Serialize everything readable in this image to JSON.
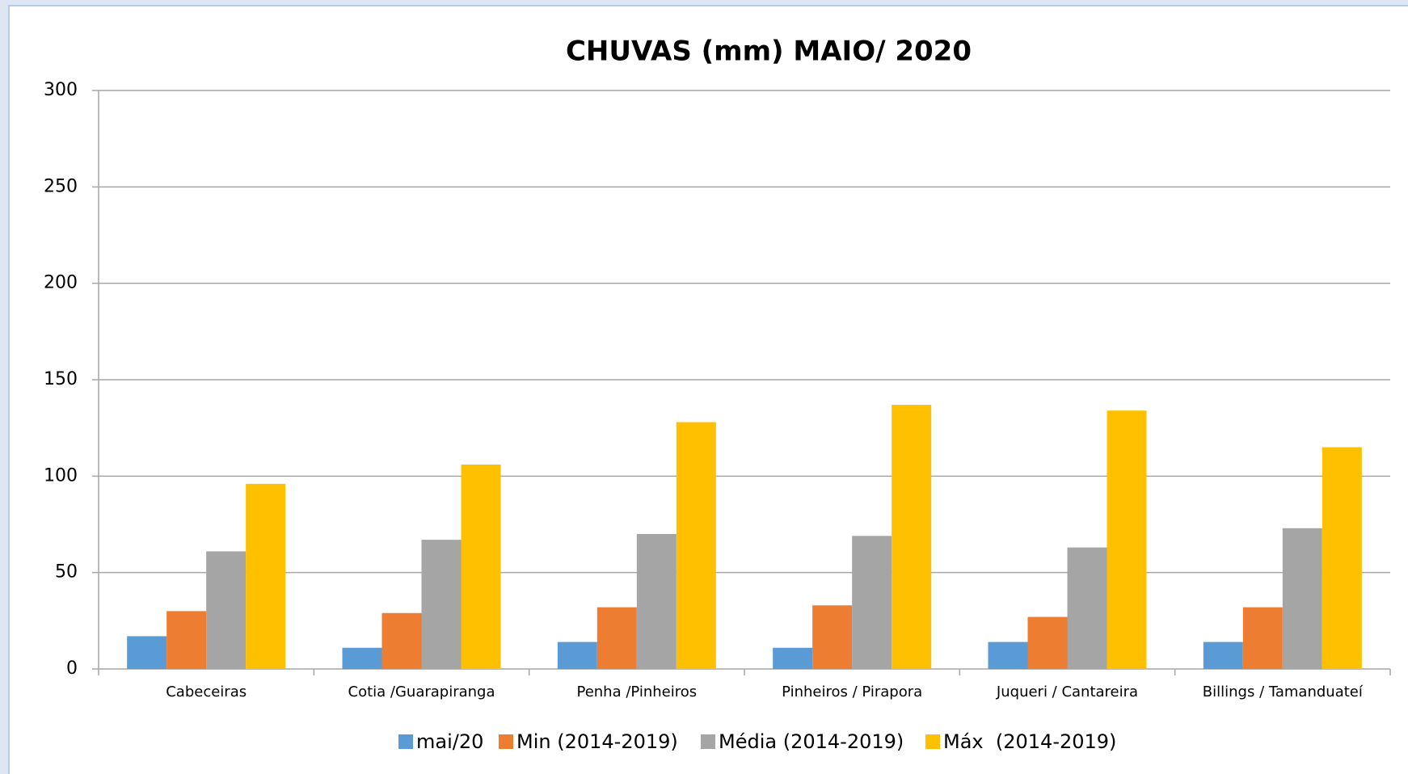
{
  "chart_data": {
    "type": "bar",
    "title": "CHUVAS (mm) MAIO/ 2020",
    "categories": [
      "Cabeceiras",
      "Cotia /Guarapiranga",
      "Penha /Pinheiros",
      "Pinheiros / Pirapora",
      "Juqueri / Cantareira",
      "Billings / Tamanduateí"
    ],
    "series": [
      {
        "name": "mai/20",
        "color": "#5b9bd5",
        "values": [
          17,
          11,
          14,
          11,
          14,
          14
        ]
      },
      {
        "name": "Min (2014-2019)",
        "color": "#ed7d31",
        "values": [
          30,
          29,
          32,
          33,
          27,
          32
        ]
      },
      {
        "name": "Média (2014-2019)",
        "color": "#a5a5a5",
        "values": [
          61,
          67,
          70,
          69,
          63,
          73
        ]
      },
      {
        "name": "Máx  (2014-2019)",
        "color": "#ffc000",
        "values": [
          96,
          106,
          128,
          137,
          134,
          115
        ]
      }
    ],
    "ylim": [
      0,
      300
    ],
    "yticks": [
      0,
      50,
      100,
      150,
      200,
      250,
      300
    ],
    "grid": true,
    "legend": "bottom"
  }
}
